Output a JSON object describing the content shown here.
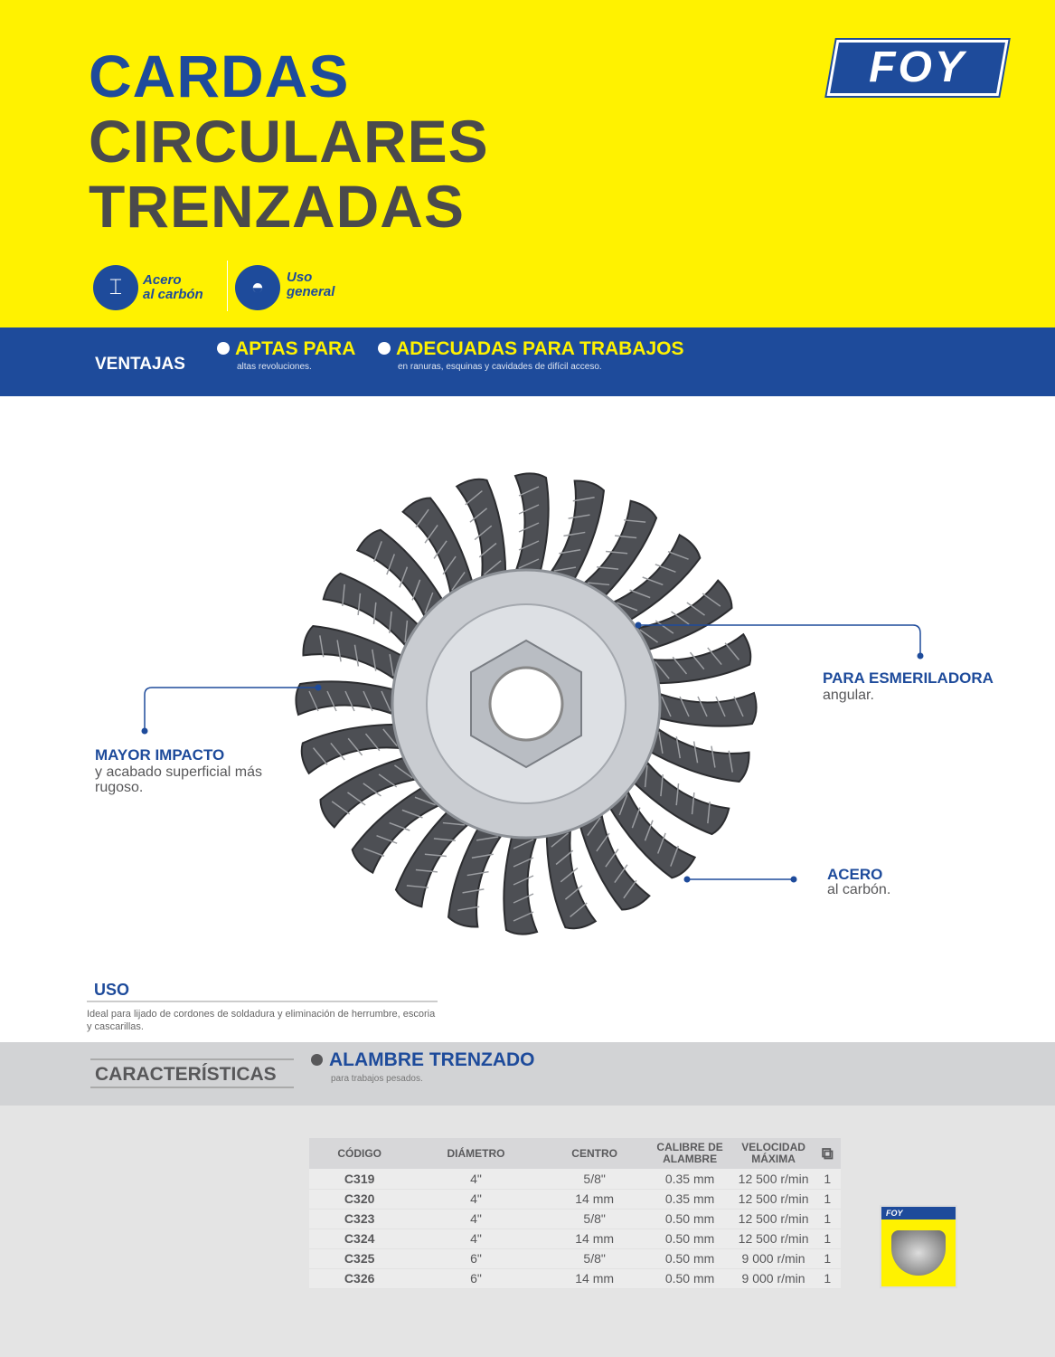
{
  "title": {
    "line1": "CARDAS",
    "line2": "CIRCULARES",
    "line3": "TRENZADAS"
  },
  "brand": "FOY",
  "badges": [
    {
      "icon": "steel-beam-icon",
      "line1": "Acero",
      "line2": "al carbón"
    },
    {
      "icon": "hard-hat-icon",
      "line1": "Uso",
      "line2": "general"
    }
  ],
  "ventajas": {
    "label": "VENTAJAS",
    "items": [
      {
        "title": "APTAS PARA",
        "text": "altas revoluciones."
      },
      {
        "title": "ADECUADAS PARA TRABAJOS",
        "text": "en ranuras, esquinas y cavidades de difícil acceso."
      }
    ]
  },
  "callouts": [
    {
      "title": "PARA ESMERILADORA",
      "text": "angular."
    },
    {
      "title": "MAYOR IMPACTO",
      "text": "y acabado superficial más rugoso."
    },
    {
      "title": "ACERO",
      "text": "al carbón."
    }
  ],
  "uso": {
    "title": "USO",
    "text": "Ideal para lijado de cordones de soldadura y eliminación de herrumbre, escoria y cascarillas."
  },
  "caracteristicas": {
    "label": "CARACTERÍSTICAS",
    "title": "ALAMBRE TRENZADO",
    "text": "para trabajos pesados."
  },
  "table": {
    "headers": [
      "CÓDIGO",
      "DIÁMETRO",
      "CENTRO",
      "CALIBRE DE ALAMBRE",
      "VELOCIDAD MÁXIMA"
    ],
    "pack_icon": "box-icon",
    "rows": [
      [
        "C319",
        "4\"",
        "5/8\"",
        "0.35 mm",
        "12 500 r/min",
        "1"
      ],
      [
        "C320",
        "4\"",
        "14 mm",
        "0.35 mm",
        "12 500 r/min",
        "1"
      ],
      [
        "C323",
        "4\"",
        "5/8\"",
        "0.50 mm",
        "12 500 r/min",
        "1"
      ],
      [
        "C324",
        "4\"",
        "14 mm",
        "0.50 mm",
        "12 500 r/min",
        "1"
      ],
      [
        "C325",
        "6\"",
        "5/8\"",
        "0.50 mm",
        "9 000 r/min",
        "1"
      ],
      [
        "C326",
        "6\"",
        "14 mm",
        "0.50 mm",
        "9 000 r/min",
        "1"
      ]
    ]
  },
  "colors": {
    "yellow": "#fff200",
    "blue": "#1e4b9b",
    "gray": "#4a4a4c"
  }
}
